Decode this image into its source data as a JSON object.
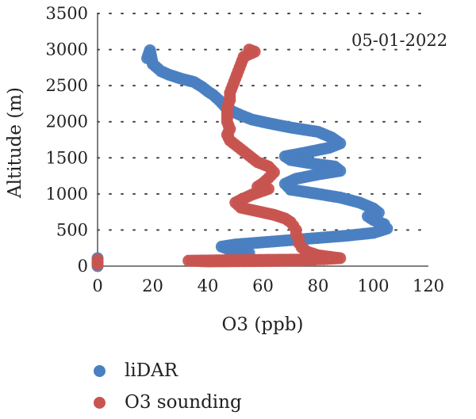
{
  "chart_data": {
    "type": "scatter",
    "title": "",
    "annotation": "05-01-2022",
    "xlabel": "O3 (ppb)",
    "ylabel": "Altitude (m)",
    "xlim": [
      0,
      120
    ],
    "ylim": [
      0,
      3500
    ],
    "xticks": [
      0,
      20,
      40,
      60,
      80,
      100,
      120
    ],
    "yticks": [
      0,
      500,
      1000,
      1500,
      2000,
      2500,
      3000,
      3500
    ],
    "grid": "dotted horizontal",
    "legend": "bottom",
    "series": [
      {
        "name": "liDAR",
        "color": "#4a7fc1",
        "points": [
          [
            0,
            0
          ],
          [
            0,
            60
          ],
          [
            0,
            110
          ],
          [
            18,
            2880
          ],
          [
            19,
            2990
          ],
          [
            20,
            2800
          ],
          [
            23,
            2700
          ],
          [
            26,
            2650
          ],
          [
            30,
            2600
          ],
          [
            35,
            2550
          ],
          [
            38,
            2480
          ],
          [
            40,
            2420
          ],
          [
            42,
            2370
          ],
          [
            44,
            2300
          ],
          [
            46,
            2220
          ],
          [
            48,
            2160
          ],
          [
            52,
            2090
          ],
          [
            56,
            2030
          ],
          [
            62,
            1980
          ],
          [
            70,
            1920
          ],
          [
            80,
            1860
          ],
          [
            85,
            1780
          ],
          [
            88,
            1700
          ],
          [
            84,
            1640
          ],
          [
            75,
            1570
          ],
          [
            68,
            1520
          ],
          [
            70,
            1470
          ],
          [
            78,
            1420
          ],
          [
            86,
            1380
          ],
          [
            88,
            1320
          ],
          [
            80,
            1270
          ],
          [
            72,
            1210
          ],
          [
            68,
            1140
          ],
          [
            70,
            1060
          ],
          [
            80,
            1000
          ],
          [
            88,
            950
          ],
          [
            95,
            880
          ],
          [
            100,
            800
          ],
          [
            102,
            740
          ],
          [
            98,
            690
          ],
          [
            100,
            640
          ],
          [
            104,
            580
          ],
          [
            105,
            520
          ],
          [
            100,
            460
          ],
          [
            90,
            420
          ],
          [
            80,
            390
          ],
          [
            70,
            360
          ],
          [
            60,
            330
          ],
          [
            50,
            300
          ],
          [
            45,
            270
          ],
          [
            47,
            240
          ],
          [
            50,
            210
          ],
          [
            55,
            180
          ]
        ]
      },
      {
        "name": "O3 sounding",
        "color": "#c85450",
        "points": [
          [
            0,
            20
          ],
          [
            0,
            50
          ],
          [
            0,
            90
          ],
          [
            55,
            3000
          ],
          [
            57,
            2970
          ],
          [
            53,
            2900
          ],
          [
            52,
            2800
          ],
          [
            51,
            2700
          ],
          [
            50,
            2600
          ],
          [
            49,
            2500
          ],
          [
            48,
            2400
          ],
          [
            48,
            2300
          ],
          [
            47,
            2200
          ],
          [
            47,
            2100
          ],
          [
            47,
            2000
          ],
          [
            48,
            1900
          ],
          [
            47,
            1820
          ],
          [
            48,
            1740
          ],
          [
            50,
            1680
          ],
          [
            52,
            1620
          ],
          [
            54,
            1560
          ],
          [
            56,
            1500
          ],
          [
            58,
            1440
          ],
          [
            62,
            1380
          ],
          [
            64,
            1300
          ],
          [
            62,
            1220
          ],
          [
            60,
            1150
          ],
          [
            58,
            1100
          ],
          [
            62,
            1070
          ],
          [
            56,
            990
          ],
          [
            52,
            920
          ],
          [
            50,
            880
          ],
          [
            52,
            810
          ],
          [
            58,
            760
          ],
          [
            64,
            710
          ],
          [
            68,
            660
          ],
          [
            70,
            610
          ],
          [
            71,
            560
          ],
          [
            72,
            500
          ],
          [
            72,
            440
          ],
          [
            73,
            380
          ],
          [
            73,
            320
          ],
          [
            74,
            260
          ],
          [
            76,
            200
          ],
          [
            80,
            150
          ],
          [
            88,
            110
          ],
          [
            82,
            95
          ],
          [
            70,
            90
          ],
          [
            55,
            85
          ],
          [
            42,
            80
          ],
          [
            33,
            75
          ],
          [
            40,
            65
          ],
          [
            60,
            70
          ],
          [
            78,
            80
          ]
        ]
      }
    ]
  }
}
